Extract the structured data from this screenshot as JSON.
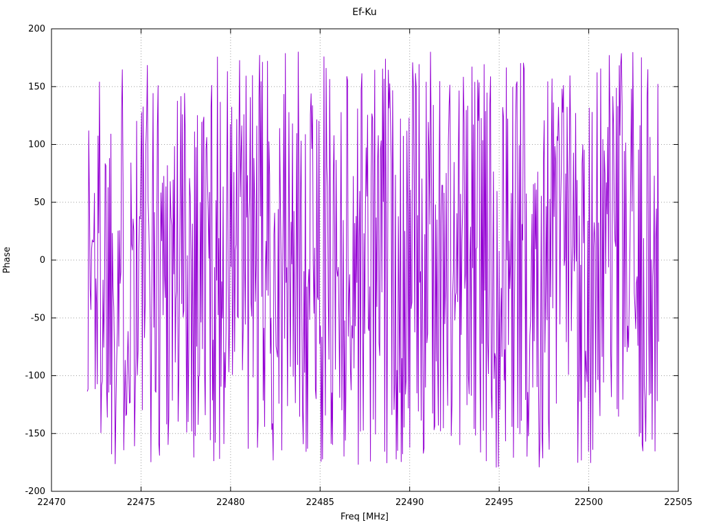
{
  "chart_data": {
    "type": "line",
    "title": "Ef-Ku",
    "xlabel": "Freq [MHz]",
    "ylabel": "Phase",
    "xlim": [
      22470,
      22505
    ],
    "ylim": [
      -200,
      200
    ],
    "x_ticks": [
      22470,
      22475,
      22480,
      22485,
      22490,
      22495,
      22500,
      22505
    ],
    "y_ticks": [
      -200,
      -150,
      -100,
      -50,
      0,
      50,
      100,
      150,
      200
    ],
    "grid": true,
    "grid_style": "dotted",
    "grid_color": "#9a9a9a",
    "legend_position": "none",
    "series": [
      {
        "name": "Phase",
        "color": "#9400d3",
        "x_start": 22472.0,
        "x_end": 22503.9,
        "n_points": 800,
        "y_min": -180,
        "y_max": 180,
        "seed": 1337,
        "distribution": "uniform",
        "description": "Wrapped phase noise: values jump pseudo-randomly across the full -180 to +180 degree range over 22472-22503.9 MHz, rendering as a dense violet band of vertical strokes"
      }
    ]
  }
}
